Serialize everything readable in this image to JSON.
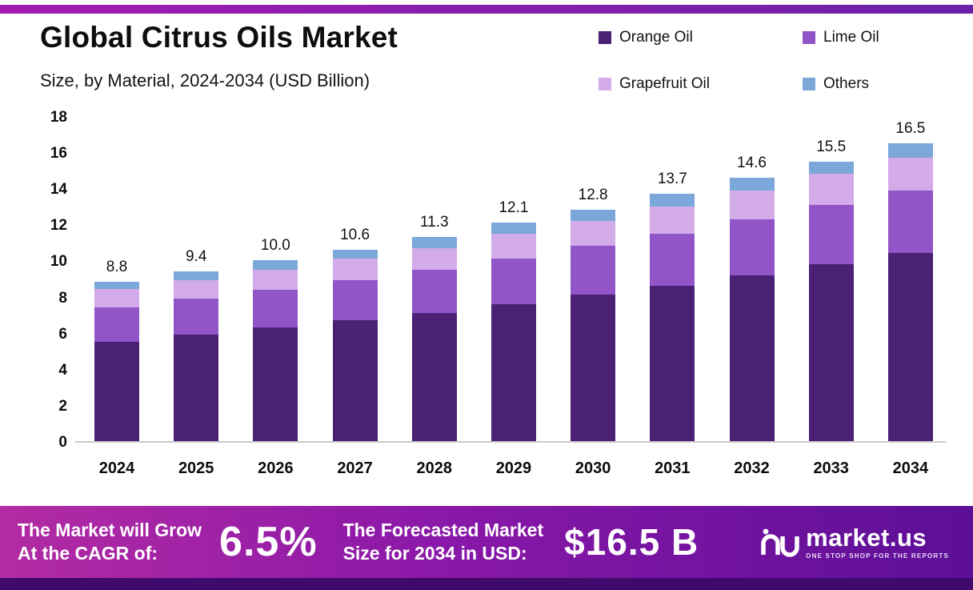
{
  "page": {
    "title": "Global Citrus Oils Market",
    "subtitle": "Size, by Material, 2024-2034 (USD Billion)"
  },
  "legend": [
    {
      "label": "Orange Oil",
      "color": "#4a2175"
    },
    {
      "label": "Lime Oil",
      "color": "#9155c8"
    },
    {
      "label": "Grapefruit Oil",
      "color": "#d2abe8"
    },
    {
      "label": "Others",
      "color": "#7ba7d9"
    }
  ],
  "chart_data": {
    "type": "bar",
    "stacked": true,
    "title": "Global Citrus Oils Market Size, by Material, 2024-2034 (USD Billion)",
    "categories": [
      "2024",
      "2025",
      "2026",
      "2027",
      "2028",
      "2029",
      "2030",
      "2031",
      "2032",
      "2033",
      "2034"
    ],
    "series": [
      {
        "name": "Orange Oil",
        "color": "#4a2175",
        "values": [
          5.5,
          5.9,
          6.3,
          6.7,
          7.1,
          7.6,
          8.1,
          8.6,
          9.2,
          9.8,
          10.4
        ]
      },
      {
        "name": "Lime Oil",
        "color": "#9155c8",
        "values": [
          1.9,
          2.0,
          2.1,
          2.2,
          2.4,
          2.5,
          2.7,
          2.9,
          3.1,
          3.3,
          3.5
        ]
      },
      {
        "name": "Grapefruit Oil",
        "color": "#d2abe8",
        "values": [
          1.0,
          1.0,
          1.1,
          1.2,
          1.2,
          1.4,
          1.4,
          1.5,
          1.6,
          1.7,
          1.8
        ]
      },
      {
        "name": "Others",
        "color": "#7ba7d9",
        "values": [
          0.4,
          0.5,
          0.5,
          0.5,
          0.6,
          0.6,
          0.6,
          0.7,
          0.7,
          0.7,
          0.8
        ]
      }
    ],
    "totals": [
      8.8,
      9.4,
      10.0,
      10.6,
      11.3,
      12.1,
      12.8,
      13.7,
      14.6,
      15.5,
      16.5
    ],
    "totals_display": [
      "8.8",
      "9.4",
      "10.0",
      "10.6",
      "11.3",
      "12.1",
      "12.8",
      "13.7",
      "14.6",
      "15.5",
      "16.5"
    ],
    "ylim": [
      0,
      18
    ],
    "yticks": [
      0,
      2,
      4,
      6,
      8,
      10,
      12,
      14,
      16,
      18
    ],
    "grid": false,
    "legend_position": "top-right"
  },
  "footer": {
    "cagr_label_line1": "The Market will Grow",
    "cagr_label_line2": "At the CAGR of:",
    "cagr_value": "6.5%",
    "forecast_label_line1": "The Forecasted Market",
    "forecast_label_line2": "Size for 2034 in USD:",
    "forecast_value": "$16.5 B",
    "brand_name": "market.us",
    "brand_tagline": "ONE STOP SHOP FOR THE REPORTS"
  },
  "colors": {
    "banner_gradient_left": "#b32ba4",
    "banner_gradient_mid": "#8a18a8",
    "banner_gradient_right": "#5c0f97",
    "top_strip_left": "#a21caf",
    "top_strip_right": "#6b21a8",
    "bottom_strip": "#3f0a6b",
    "axis_line": "#c9c9c9"
  }
}
